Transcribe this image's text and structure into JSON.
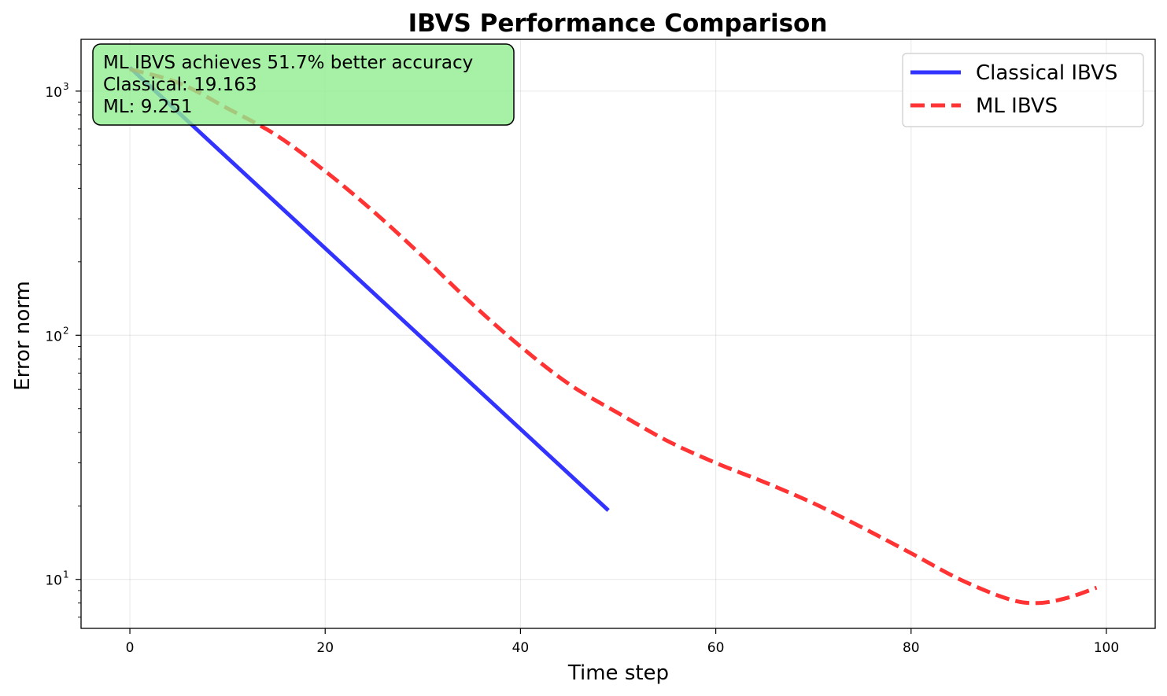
{
  "chart_data": {
    "type": "line",
    "title": "IBVS Performance Comparison",
    "xlabel": "Time step",
    "ylabel": "Error norm",
    "xlim": [
      -5,
      105
    ],
    "ylim": [
      6.3,
      1630
    ],
    "yscale": "log",
    "xticks": [
      0,
      20,
      40,
      60,
      80,
      100
    ],
    "yticks": [
      {
        "base": "10",
        "exp": "1",
        "value": 10
      },
      {
        "base": "10",
        "exp": "2",
        "value": 100
      },
      {
        "base": "10",
        "exp": "3",
        "value": 1000
      }
    ],
    "grid": true,
    "legend_position": "top-right",
    "series": [
      {
        "name": "Classical IBVS",
        "color": "#0000ff",
        "style": "solid",
        "x": [
          0,
          49
        ],
        "y": [
          1250,
          19.163
        ]
      },
      {
        "name": "ML IBVS",
        "color": "#ff0000",
        "style": "dashed",
        "x": [
          0,
          5,
          10,
          15,
          20,
          25,
          30,
          35,
          40,
          45,
          50,
          55,
          60,
          65,
          70,
          75,
          80,
          85,
          90,
          93,
          96,
          99
        ],
        "y": [
          1230,
          1080,
          850,
          660,
          470,
          320,
          210,
          135,
          90,
          63,
          48,
          37,
          30,
          25,
          20.5,
          16.3,
          12.8,
          10,
          8.3,
          8,
          8.4,
          9.251
        ]
      }
    ],
    "annotation": {
      "lines": [
        "ML IBVS achieves 51.7% better accuracy",
        "Classical: 19.163",
        "ML: 9.251"
      ],
      "background": "#90ee90",
      "position": "top-left"
    }
  }
}
